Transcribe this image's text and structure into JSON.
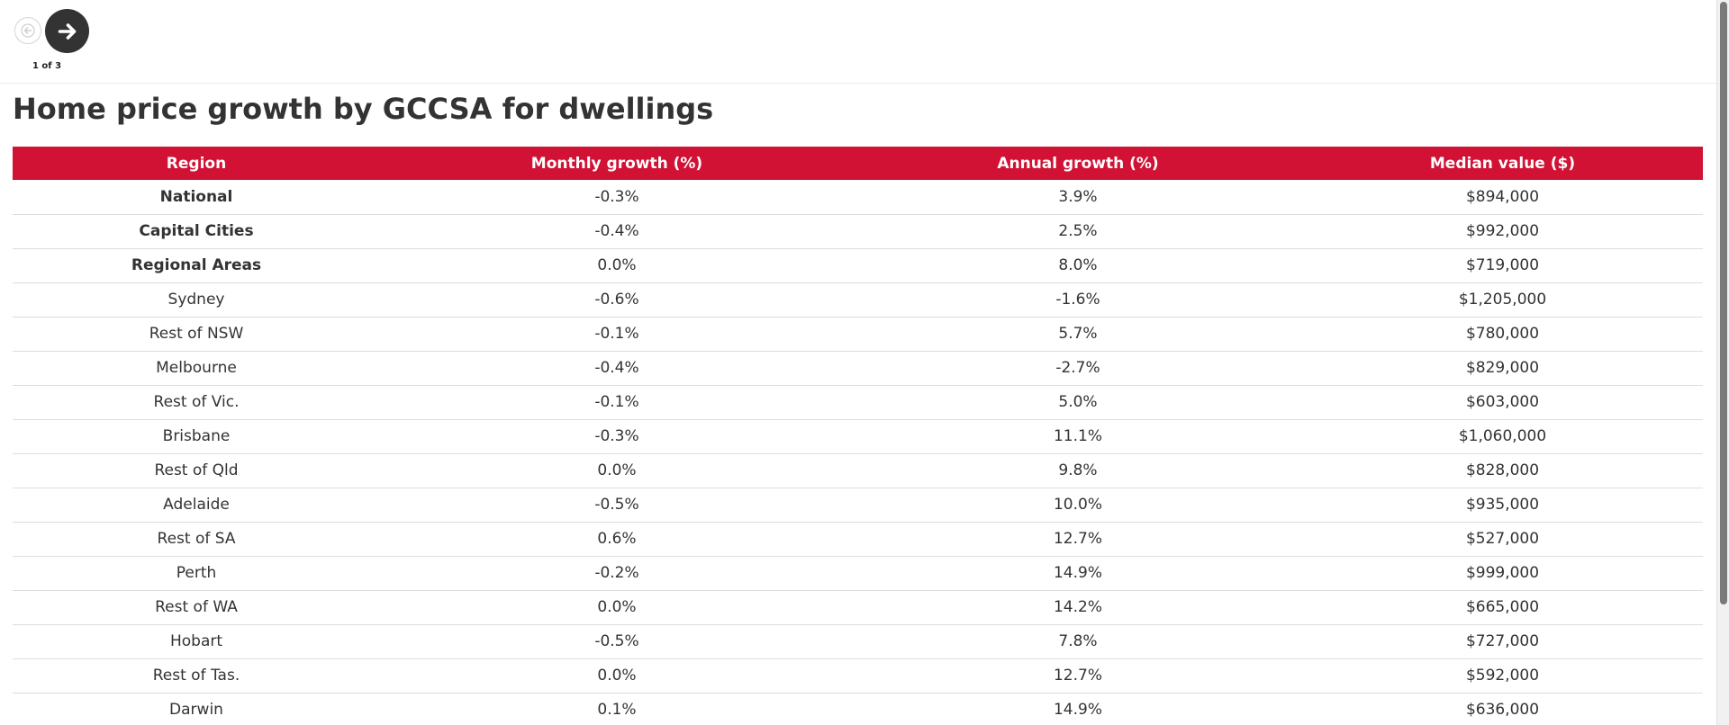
{
  "pager": {
    "text": "1 of 3"
  },
  "title": "Home price growth by GCCSA for dwellings",
  "table": {
    "headers": [
      "Region",
      "Monthly growth (%)",
      "Annual growth (%)",
      "Median value ($)"
    ],
    "rows": [
      {
        "region": "National",
        "monthly": "-0.3%",
        "annual": "3.9%",
        "median": "$894,000",
        "bold": true
      },
      {
        "region": "Capital Cities",
        "monthly": "-0.4%",
        "annual": "2.5%",
        "median": "$992,000",
        "bold": true
      },
      {
        "region": "Regional Areas",
        "monthly": "0.0%",
        "annual": "8.0%",
        "median": "$719,000",
        "bold": true
      },
      {
        "region": "Sydney",
        "monthly": "-0.6%",
        "annual": "-1.6%",
        "median": "$1,205,000",
        "bold": false
      },
      {
        "region": "Rest of NSW",
        "monthly": "-0.1%",
        "annual": "5.7%",
        "median": "$780,000",
        "bold": false
      },
      {
        "region": "Melbourne",
        "monthly": "-0.4%",
        "annual": "-2.7%",
        "median": "$829,000",
        "bold": false
      },
      {
        "region": "Rest of Vic.",
        "monthly": "-0.1%",
        "annual": "5.0%",
        "median": "$603,000",
        "bold": false
      },
      {
        "region": "Brisbane",
        "monthly": "-0.3%",
        "annual": "11.1%",
        "median": "$1,060,000",
        "bold": false
      },
      {
        "region": "Rest of Qld",
        "monthly": "0.0%",
        "annual": "9.8%",
        "median": "$828,000",
        "bold": false
      },
      {
        "region": "Adelaide",
        "monthly": "-0.5%",
        "annual": "10.0%",
        "median": "$935,000",
        "bold": false
      },
      {
        "region": "Rest of SA",
        "monthly": "0.6%",
        "annual": "12.7%",
        "median": "$527,000",
        "bold": false
      },
      {
        "region": "Perth",
        "monthly": "-0.2%",
        "annual": "14.9%",
        "median": "$999,000",
        "bold": false
      },
      {
        "region": "Rest of WA",
        "monthly": "0.0%",
        "annual": "14.2%",
        "median": "$665,000",
        "bold": false
      },
      {
        "region": "Hobart",
        "monthly": "-0.5%",
        "annual": "7.8%",
        "median": "$727,000",
        "bold": false
      },
      {
        "region": "Rest of Tas.",
        "monthly": "0.0%",
        "annual": "12.7%",
        "median": "$592,000",
        "bold": false
      },
      {
        "region": "Darwin",
        "monthly": "0.1%",
        "annual": "14.9%",
        "median": "$636,000",
        "bold": false
      }
    ]
  },
  "icons": {
    "prev": "arrow-left-icon",
    "next": "arrow-right-icon"
  },
  "colors": {
    "header_bg": "#d11234",
    "nav_next_bg": "#333333"
  }
}
